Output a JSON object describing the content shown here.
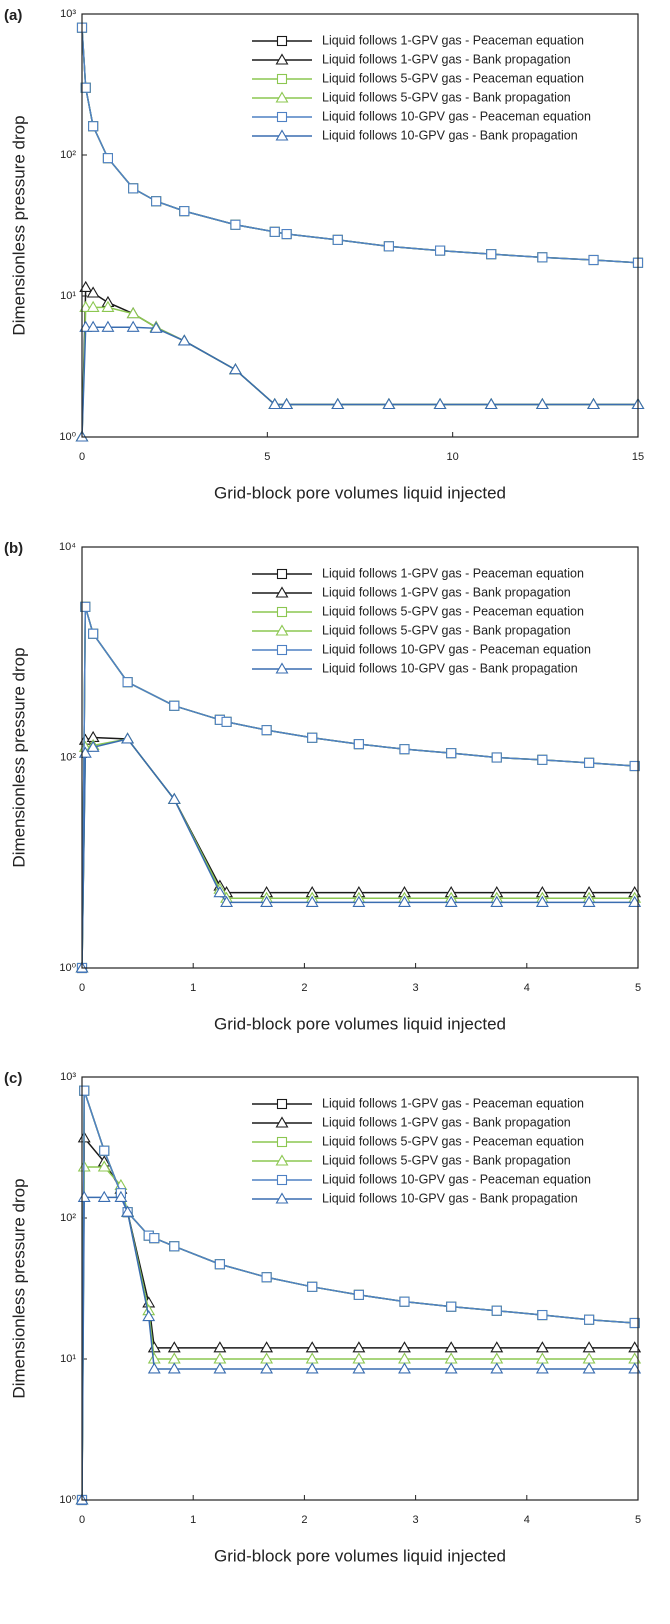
{
  "chart_data": [
    {
      "type": "line",
      "panel_label": "(a)",
      "log_y": true,
      "legend": "upper right",
      "xlabel": "Grid-block pore volumes liquid injected",
      "ylabel": "Dimensionless pressure drop",
      "xlim": [
        0,
        15
      ],
      "xticks": [
        0,
        5,
        10,
        15
      ],
      "ylim": [
        1,
        1000
      ],
      "yticks": [
        {
          "value": 1,
          "label": "10⁰"
        },
        {
          "value": 10,
          "label": "10¹"
        },
        {
          "value": 100,
          "label": "10²"
        },
        {
          "value": 1000,
          "label": "10³"
        }
      ],
      "x": [
        0,
        0.1,
        0.3,
        0.7,
        1.38,
        2,
        2.76,
        4.14,
        5.2,
        5.52,
        6.9,
        8.28,
        9.66,
        11.04,
        12.42,
        13.8,
        15
      ],
      "series": [
        {
          "name": "Liquid follows 1-GPV gas - Peaceman equation",
          "color": "#1a1a1a",
          "marker": "square",
          "values": [
            800,
            300,
            160,
            95,
            58,
            47,
            40,
            32,
            28.5,
            27.5,
            25,
            22.5,
            21,
            19.8,
            18.8,
            18,
            17.2
          ]
        },
        {
          "name": "Liquid follows 1-GPV gas - Bank propagation",
          "color": "#1a1a1a",
          "marker": "triangle",
          "values": [
            1,
            11.5,
            10.5,
            9,
            7.5,
            6,
            4.8,
            3,
            1.7,
            1.7,
            1.7,
            1.7,
            1.7,
            1.7,
            1.7,
            1.7,
            1.7
          ]
        },
        {
          "name": "Liquid follows 5-GPV gas - Peaceman equation",
          "color": "#8cc751",
          "marker": "square",
          "values": [
            800,
            300,
            160,
            95,
            58,
            47,
            40,
            32,
            28.5,
            27.5,
            25,
            22.5,
            21,
            19.8,
            18.8,
            18,
            17.2
          ]
        },
        {
          "name": "Liquid follows 5-GPV gas - Bank propagation",
          "color": "#8cc751",
          "marker": "triangle",
          "values": [
            1,
            8.3,
            8.3,
            8.3,
            7.5,
            6,
            4.8,
            3,
            1.7,
            1.7,
            1.7,
            1.7,
            1.7,
            1.7,
            1.7,
            1.7,
            1.7
          ]
        },
        {
          "name": "Liquid follows 10-GPV gas - Peaceman equation",
          "color": "#4f81c4",
          "marker": "square",
          "values": [
            800,
            300,
            160,
            95,
            58,
            47,
            40,
            32,
            28.5,
            27.5,
            25,
            22.5,
            21,
            19.8,
            18.8,
            18,
            17.2
          ]
        },
        {
          "name": "Liquid follows 10-GPV gas - Bank propagation",
          "color": "#3a6db0",
          "marker": "triangle",
          "values": [
            1,
            6,
            6,
            6,
            6,
            5.9,
            4.8,
            3,
            1.7,
            1.7,
            1.7,
            1.7,
            1.7,
            1.7,
            1.7,
            1.7,
            1.7
          ]
        }
      ]
    },
    {
      "type": "line",
      "panel_label": "(b)",
      "log_y": true,
      "legend": "upper right",
      "xlabel": "Grid-block pore volumes liquid injected",
      "ylabel": "Dimensionless pressure drop",
      "xlim": [
        0,
        5
      ],
      "xticks": [
        0,
        1,
        2,
        3,
        4,
        5
      ],
      "ylim": [
        1,
        10000
      ],
      "yticks": [
        {
          "value": 1,
          "label": "10⁰"
        },
        {
          "value": 100,
          "label": "10²"
        },
        {
          "value": 10000,
          "label": "10⁴"
        }
      ],
      "x": [
        0,
        0.03,
        0.1,
        0.41,
        0.83,
        1.24,
        1.3,
        1.66,
        2.07,
        2.49,
        2.9,
        3.32,
        3.73,
        4.14,
        4.56,
        4.97
      ],
      "series": [
        {
          "name": "Liquid follows 1-GPV gas - Peaceman equation",
          "color": "#1a1a1a",
          "marker": "square",
          "values": [
            1,
            2700,
            1500,
            520,
            310,
            228,
            218,
            182,
            154,
            134,
            120,
            110,
            100,
            95,
            89,
            83
          ]
        },
        {
          "name": "Liquid follows 1-GPV gas - Bank propagation",
          "color": "#1a1a1a",
          "marker": "triangle",
          "values": [
            1,
            146,
            155,
            150,
            40,
            6,
            5.2,
            5.2,
            5.2,
            5.2,
            5.2,
            5.2,
            5.2,
            5.2,
            5.2,
            5.2
          ]
        },
        {
          "name": "Liquid follows 5-GPV gas - Peaceman equation",
          "color": "#8cc751",
          "marker": "square",
          "values": [
            1,
            2700,
            1500,
            520,
            310,
            228,
            218,
            182,
            154,
            134,
            120,
            110,
            100,
            95,
            89,
            83
          ]
        },
        {
          "name": "Liquid follows 5-GPV gas - Bank propagation",
          "color": "#8cc751",
          "marker": "triangle",
          "values": [
            1,
            125,
            130,
            150,
            40,
            5.6,
            4.6,
            4.6,
            4.6,
            4.6,
            4.6,
            4.6,
            4.6,
            4.6,
            4.6,
            4.6
          ]
        },
        {
          "name": "Liquid follows 10-GPV gas - Peaceman equation",
          "color": "#4f81c4",
          "marker": "square",
          "values": [
            1,
            2700,
            1500,
            520,
            310,
            228,
            218,
            182,
            154,
            134,
            120,
            110,
            100,
            95,
            89,
            83
          ]
        },
        {
          "name": "Liquid follows 10-GPV gas - Bank propagation",
          "color": "#3a6db0",
          "marker": "triangle",
          "values": [
            1,
            110,
            125,
            150,
            40,
            5.2,
            4.2,
            4.2,
            4.2,
            4.2,
            4.2,
            4.2,
            4.2,
            4.2,
            4.2,
            4.2
          ]
        }
      ]
    },
    {
      "type": "line",
      "panel_label": "(c)",
      "log_y": true,
      "legend": "upper right",
      "xlabel": "Grid-block pore volumes liquid injected",
      "ylabel": "Dimensionless pressure drop",
      "xlim": [
        0,
        5
      ],
      "xticks": [
        0,
        1,
        2,
        3,
        4,
        5
      ],
      "ylim": [
        1,
        1000
      ],
      "yticks": [
        {
          "value": 1,
          "label": "10⁰"
        },
        {
          "value": 10,
          "label": "10¹"
        },
        {
          "value": 100,
          "label": "10²"
        },
        {
          "value": 1000,
          "label": "10³"
        }
      ],
      "x": [
        0,
        0.02,
        0.2,
        0.35,
        0.41,
        0.6,
        0.65,
        0.83,
        1.24,
        1.66,
        2.07,
        2.49,
        2.9,
        3.32,
        3.73,
        4.14,
        4.56,
        4.97
      ],
      "series": [
        {
          "name": "Liquid follows 1-GPV gas - Peaceman equation",
          "color": "#1a1a1a",
          "marker": "square",
          "values": [
            1,
            800,
            300,
            150,
            110,
            75,
            72,
            63,
            47,
            38,
            32.5,
            28.5,
            25.5,
            23.5,
            22,
            20.5,
            19,
            18
          ]
        },
        {
          "name": "Liquid follows 1-GPV gas - Bank propagation",
          "color": "#1a1a1a",
          "marker": "triangle",
          "values": [
            1,
            370,
            250,
            160,
            110,
            25,
            12,
            12,
            12,
            12,
            12,
            12,
            12,
            12,
            12,
            12,
            12,
            12
          ]
        },
        {
          "name": "Liquid follows 5-GPV gas - Peaceman equation",
          "color": "#8cc751",
          "marker": "square",
          "values": [
            1,
            800,
            300,
            150,
            110,
            75,
            72,
            63,
            47,
            38,
            32.5,
            28.5,
            25.5,
            23.5,
            22,
            20.5,
            19,
            18
          ]
        },
        {
          "name": "Liquid follows 5-GPV gas - Bank propagation",
          "color": "#8cc751",
          "marker": "triangle",
          "values": [
            1,
            230,
            230,
            170,
            110,
            22,
            10,
            10,
            10,
            10,
            10,
            10,
            10,
            10,
            10,
            10,
            10,
            10
          ]
        },
        {
          "name": "Liquid follows 10-GPV gas - Peaceman equation",
          "color": "#4f81c4",
          "marker": "square",
          "values": [
            1,
            800,
            300,
            150,
            110,
            75,
            72,
            63,
            47,
            38,
            32.5,
            28.5,
            25.5,
            23.5,
            22,
            20.5,
            19,
            18
          ]
        },
        {
          "name": "Liquid follows 10-GPV gas - Bank propagation",
          "color": "#3a6db0",
          "marker": "triangle",
          "values": [
            1,
            140,
            140,
            140,
            110,
            20,
            8.5,
            8.5,
            8.5,
            8.5,
            8.5,
            8.5,
            8.5,
            8.5,
            8.5,
            8.5,
            8.5,
            8.5
          ]
        }
      ]
    }
  ]
}
